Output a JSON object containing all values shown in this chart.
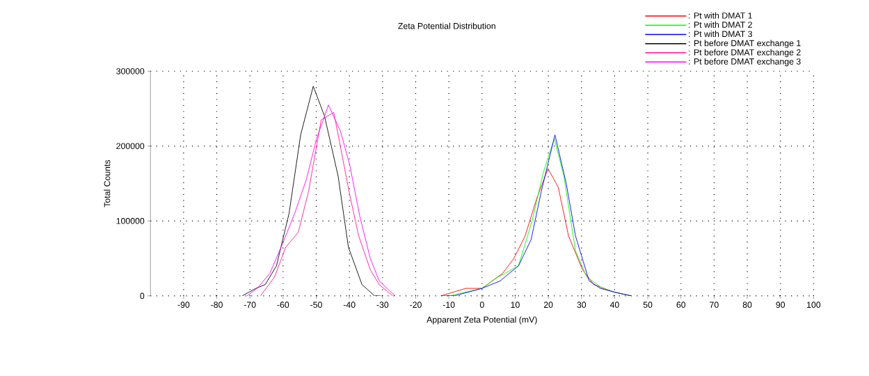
{
  "chart_data": {
    "type": "line",
    "title": "Zeta Potential Distribution",
    "xlabel": "Apparent Zeta Potential (mV)",
    "ylabel": "Total Counts",
    "xlim": [
      -100,
      100
    ],
    "ylim": [
      0,
      300000
    ],
    "xticks": [
      -90,
      -80,
      -70,
      -60,
      -50,
      -40,
      -30,
      -20,
      -10,
      0,
      10,
      20,
      30,
      40,
      50,
      60,
      70,
      80,
      90,
      100
    ],
    "yticks": [
      0,
      100000,
      200000,
      300000
    ],
    "grid": true,
    "legend": "top right",
    "marker": "none",
    "line_style": "solid",
    "series": [
      {
        "name": ": Pt with DMAT 1",
        "color": "#ff0000",
        "x": [
          -12.4,
          -4.9,
          0,
          6.2,
          9.6,
          13.0,
          16.5,
          19.9,
          23.0,
          26.1,
          30.3,
          33.7,
          39.9,
          45
        ],
        "values": [
          0,
          10000,
          10000,
          30000,
          50000,
          80000,
          130000,
          170000,
          145000,
          80000,
          35000,
          15000,
          5000,
          0
        ]
      },
      {
        "name": ": Pt with DMAT 2",
        "color": "#00ff00",
        "x": [
          -9.7,
          0,
          4.8,
          11.0,
          15.1,
          18.5,
          21.8,
          24.7,
          28.2,
          31.6,
          36.4,
          39.9,
          45
        ],
        "values": [
          0,
          10000,
          25000,
          40000,
          100000,
          165000,
          210000,
          160000,
          60000,
          25000,
          10000,
          5000,
          0
        ]
      },
      {
        "name": ": Pt with DMAT 3",
        "color": "#0000ff",
        "x": [
          -12.4,
          -8.3,
          0,
          5.5,
          8.2,
          11.0,
          14.8,
          17.9,
          22.0,
          25.4,
          28.2,
          32.3,
          35.7,
          39.9,
          45
        ],
        "values": [
          0,
          0,
          10000,
          20000,
          30000,
          40000,
          75000,
          140000,
          215000,
          150000,
          80000,
          20000,
          10000,
          5000,
          0
        ]
      },
      {
        "name": ": Pt before DMAT exchange 1",
        "color": "#000000",
        "x": [
          -72.3,
          -68.2,
          -65.4,
          -62.0,
          -58.2,
          -54.7,
          -50.9,
          -47.5,
          -43.4,
          -40.3,
          -36.2,
          -32.4,
          -30.6
        ],
        "values": [
          0,
          10000,
          15000,
          40000,
          110000,
          215000,
          280000,
          240000,
          160000,
          65000,
          15000,
          0,
          0
        ]
      },
      {
        "name": ": Pt before DMAT exchange 2",
        "color": "#ff1493",
        "x": [
          -66.8,
          -62.6,
          -59.2,
          -55.4,
          -52.3,
          -48.5,
          -44.7,
          -39.9,
          -37.2,
          -33.7,
          -31.0,
          -26.9
        ],
        "values": [
          0,
          25000,
          65000,
          85000,
          140000,
          235000,
          245000,
          135000,
          80000,
          35000,
          15000,
          0
        ]
      },
      {
        "name": ": Pt before DMAT exchange 3",
        "color": "#ff00ff",
        "x": [
          -70.9,
          -67.8,
          -64.0,
          -60.6,
          -56.5,
          -53.0,
          -49.9,
          -46.3,
          -42.7,
          -39.9,
          -36.8,
          -33.7,
          -31.0,
          -26.2
        ],
        "values": [
          0,
          10000,
          30000,
          65000,
          110000,
          155000,
          210000,
          255000,
          220000,
          175000,
          105000,
          50000,
          20000,
          0
        ]
      }
    ]
  }
}
